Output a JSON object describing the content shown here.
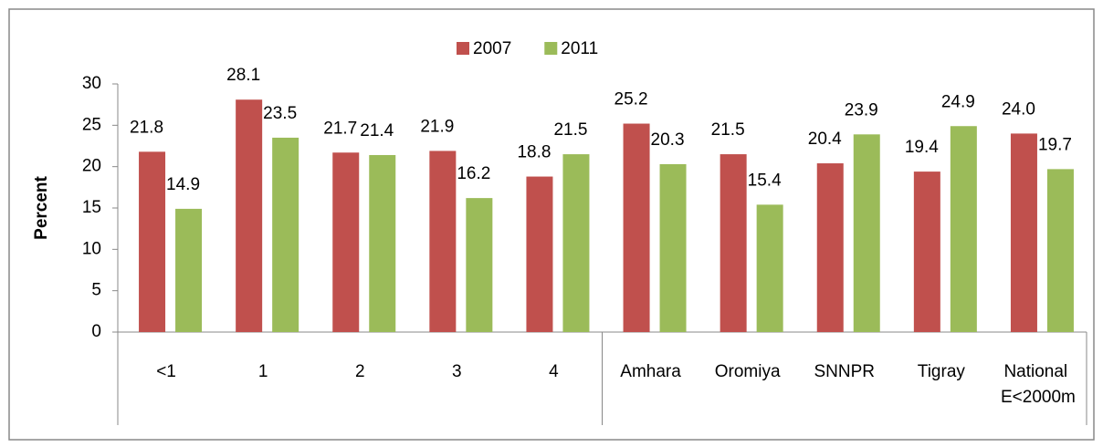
{
  "chart_data": {
    "type": "bar",
    "y_label": "Percent",
    "categories": [
      "<1",
      "1",
      "2",
      "3",
      "4",
      "Amhara",
      "Oromiya",
      "SNNPR",
      "Tigray",
      "National E<2000m"
    ],
    "series": [
      {
        "name": "2007",
        "color": "#c0504d",
        "values": [
          21.8,
          28.1,
          21.7,
          21.9,
          18.8,
          25.2,
          21.5,
          20.4,
          19.4,
          24.0
        ],
        "value_labels": [
          "21.8",
          "28.1",
          "21.7",
          "21.9",
          "18.8",
          "25.2",
          "21.5",
          "20.4",
          "19.4",
          "24.0"
        ]
      },
      {
        "name": "2011",
        "color": "#9bbb59",
        "values": [
          14.9,
          23.5,
          21.4,
          16.2,
          21.5,
          20.3,
          15.4,
          23.9,
          24.9,
          19.7
        ],
        "value_labels": [
          "14.9",
          "23.5",
          "21.4",
          "16.2",
          "21.5",
          "20.3",
          "15.4",
          "23.9",
          "24.9",
          "19.7"
        ]
      }
    ],
    "ylim": [
      0,
      30
    ],
    "yticks": [
      0,
      5,
      10,
      15,
      20,
      25,
      30
    ],
    "legend": "top"
  }
}
